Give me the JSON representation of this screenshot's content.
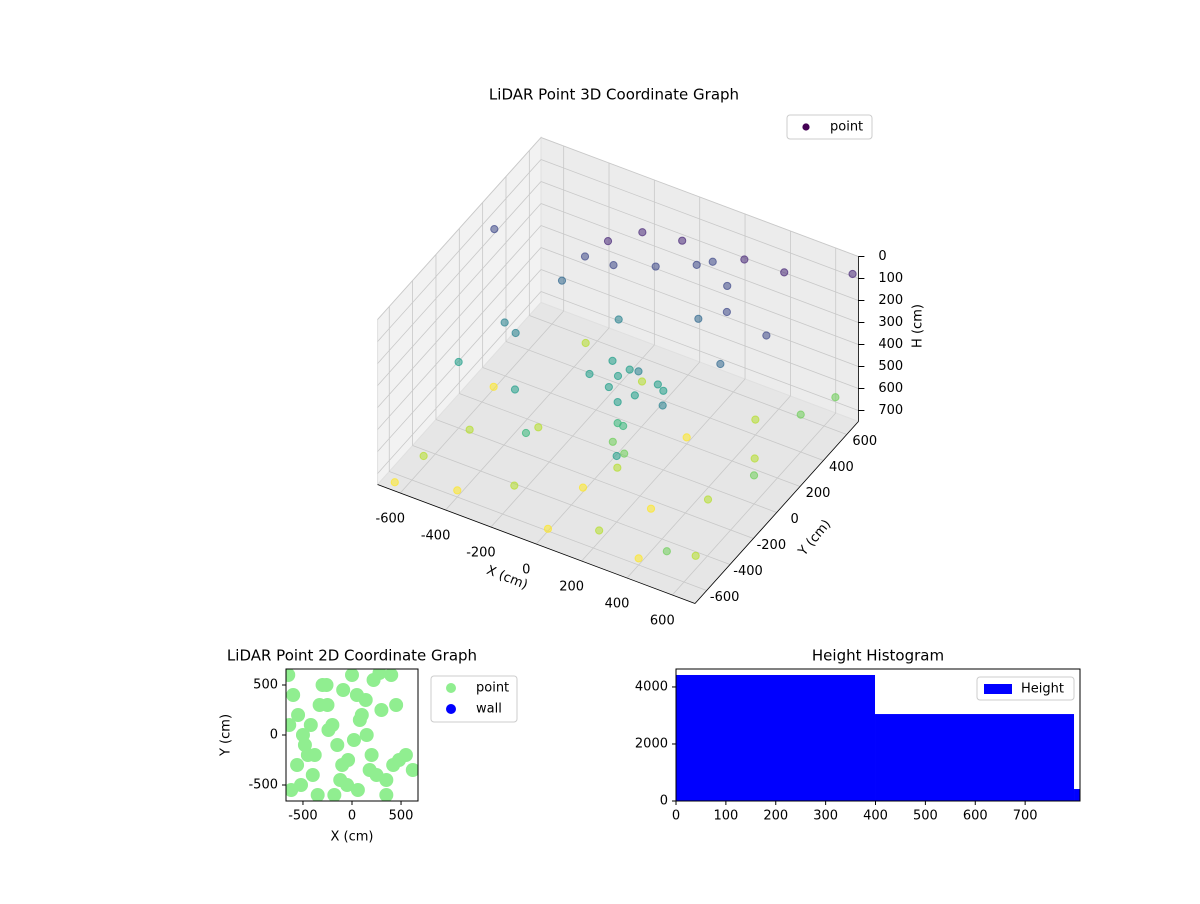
{
  "chart_data": [
    {
      "type": "scatter3d",
      "title": "LiDAR Point 3D Coordinate Graph",
      "xlabel": "X (cm)",
      "ylabel": "Y (cm)",
      "zlabel": "H (cm)",
      "xlim": [
        -700,
        700
      ],
      "ylim": [
        -700,
        700
      ],
      "zlim": [
        0,
        750
      ],
      "zinverted": true,
      "xticks": [
        -600,
        -400,
        -200,
        0,
        200,
        400,
        600
      ],
      "yticks": [
        -600,
        -400,
        -200,
        0,
        200,
        400,
        600
      ],
      "zticks": [
        0,
        100,
        200,
        300,
        400,
        500,
        600,
        700
      ],
      "cmap": "viridis",
      "legend": "upper right",
      "series": [
        {
          "name": "point",
          "color": "#440154",
          "x": [
            -300,
            -250,
            -150,
            0,
            150,
            250,
            300,
            -350,
            -200,
            100,
            -50,
            200,
            0,
            100,
            -50,
            150,
            50,
            -100,
            200,
            0,
            80,
            -30,
            100,
            80,
            120,
            60,
            -400,
            -500,
            300,
            400,
            -300,
            500,
            -200,
            300,
            450,
            -600,
            200,
            -100,
            -600,
            -400,
            -200,
            0,
            200,
            400,
            600,
            500,
            600,
            500,
            300,
            -500,
            -300,
            0,
            100,
            -100,
            200,
            400,
            -600,
            -400,
            650,
            600,
            -650,
            700,
            -700,
            550
          ],
          "y": [
            300,
            400,
            500,
            550,
            520,
            450,
            350,
            200,
            350,
            480,
            420,
            300,
            0,
            -50,
            50,
            50,
            -100,
            -50,
            0,
            100,
            20,
            -20,
            -150,
            -200,
            -180,
            -120,
            -100,
            0,
            -200,
            100,
            -300,
            300,
            -400,
            500,
            550,
            -200,
            -400,
            200,
            -500,
            -600,
            -500,
            -600,
            -550,
            -600,
            -500,
            -200,
            0,
            200,
            -300,
            -300,
            -100,
            -300,
            -200,
            400,
            200,
            400,
            100,
            500,
            600,
            400,
            -650,
            650,
            300,
            -650
          ],
          "z": [
            150,
            120,
            100,
            110,
            130,
            160,
            200,
            220,
            180,
            140,
            170,
            240,
            400,
            420,
            380,
            410,
            440,
            400,
            390,
            430,
            360,
            450,
            500,
            550,
            600,
            520,
            300,
            350,
            300,
            250,
            400,
            200,
            500,
            50,
            80,
            450,
            450,
            300,
            700,
            720,
            680,
            740,
            700,
            720,
            690,
            650,
            620,
            700,
            710,
            660,
            690,
            730,
            660,
            700,
            720,
            680,
            740,
            700,
            600,
            580,
            750,
            50,
            180,
            600
          ]
        }
      ]
    },
    {
      "type": "scatter",
      "title": "LiDAR Point 2D Coordinate Graph",
      "xlabel": "X (cm)",
      "ylabel": "Y (cm)",
      "xlim": [
        -673,
        673
      ],
      "ylim": [
        -660,
        660
      ],
      "xticks": [
        -500,
        0,
        500
      ],
      "yticks": [
        -500,
        0,
        500
      ],
      "legend": "outside upper left",
      "series": [
        {
          "name": "point",
          "color": "#90ee90",
          "x": [
            -650,
            -600,
            -550,
            -500,
            -450,
            -400,
            -350,
            -300,
            -250,
            -200,
            -150,
            -100,
            -50,
            0,
            50,
            100,
            150,
            200,
            250,
            -620,
            -560,
            -480,
            -420,
            -330,
            -260,
            -180,
            -120,
            -40,
            20,
            80,
            140,
            220,
            280,
            -640,
            -520,
            -380,
            -240,
            -90,
            60,
            180,
            300,
            350,
            420,
            480,
            550,
            620,
            400,
            450,
            350
          ],
          "y": [
            600,
            400,
            200,
            0,
            -200,
            -400,
            -600,
            500,
            300,
            100,
            -100,
            -300,
            -500,
            600,
            400,
            200,
            0,
            -200,
            -400,
            -550,
            -300,
            -100,
            100,
            300,
            500,
            -600,
            -450,
            -250,
            -50,
            150,
            350,
            550,
            620,
            100,
            -500,
            -200,
            50,
            450,
            -550,
            -350,
            250,
            -600,
            -300,
            -250,
            -200,
            -350,
            600,
            300,
            -450
          ]
        },
        {
          "name": "wall",
          "color": "#0000ff",
          "x": [],
          "y": []
        }
      ]
    },
    {
      "type": "histogram",
      "title": "Height Histogram",
      "bins": [
        0,
        399,
        798,
        810
      ],
      "counts": [
        4420,
        3050,
        420
      ],
      "color": "#0000ff",
      "name": "Height",
      "xlim": [
        0,
        810
      ],
      "ylim": [
        0,
        4630
      ],
      "xticks": [
        0,
        100,
        200,
        300,
        400,
        500,
        600,
        700
      ],
      "yticks": [
        0,
        2000,
        4000
      ],
      "legend": "upper right"
    }
  ]
}
